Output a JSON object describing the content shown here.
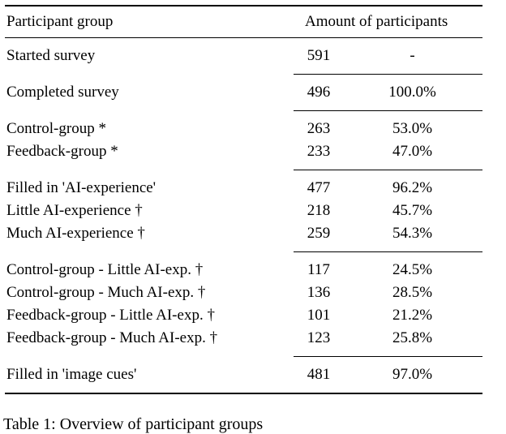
{
  "table": {
    "header": {
      "col1": "Participant group",
      "col2": "Amount of participants"
    },
    "groups": [
      {
        "rows": [
          {
            "label": "Started survey",
            "count": "591",
            "pct": "-"
          }
        ]
      },
      {
        "rows": [
          {
            "label": "Completed survey",
            "count": "496",
            "pct": "100.0%"
          }
        ]
      },
      {
        "rows": [
          {
            "label": "Control-group *",
            "count": "263",
            "pct": "53.0%"
          },
          {
            "label": "Feedback-group *",
            "count": "233",
            "pct": "47.0%"
          }
        ]
      },
      {
        "rows": [
          {
            "label": "Filled in 'AI-experience'",
            "count": "477",
            "pct": "96.2%"
          },
          {
            "label": "Little AI-experience †",
            "count": "218",
            "pct": "45.7%"
          },
          {
            "label": "Much AI-experience †",
            "count": "259",
            "pct": "54.3%"
          }
        ]
      },
      {
        "rows": [
          {
            "label": "Control-group - Little AI-exp. †",
            "count": "117",
            "pct": "24.5%"
          },
          {
            "label": "Control-group - Much AI-exp. †",
            "count": "136",
            "pct": "28.5%"
          },
          {
            "label": "Feedback-group - Little AI-exp. †",
            "count": "101",
            "pct": "21.2%"
          },
          {
            "label": "Feedback-group - Much AI-exp. †",
            "count": "123",
            "pct": "25.8%"
          }
        ]
      },
      {
        "rows": [
          {
            "label": "Filled in 'image cues'",
            "count": "481",
            "pct": "97.0%"
          }
        ]
      }
    ]
  },
  "caption": "Table 1: Overview of participant groups"
}
